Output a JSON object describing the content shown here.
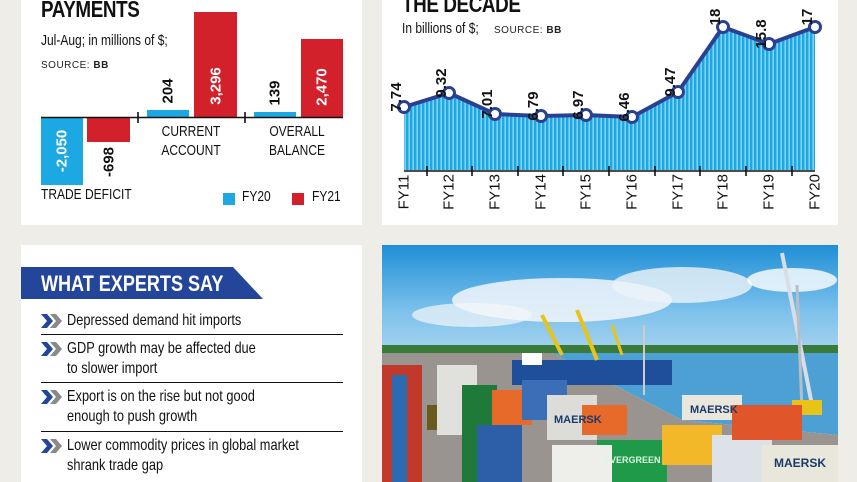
{
  "left_chart": {
    "title": "PAYMENTS",
    "subtitle": "Jul-Aug; in millions of $;",
    "source_label": "SOURCE:",
    "source_value": "BB",
    "groups": [
      "TRADE DEFICIT",
      "CURRENT ACCOUNT",
      "OVERALL BALANCE"
    ],
    "group_lines": [
      [
        "TRADE DEFICIT"
      ],
      [
        "CURRENT",
        "ACCOUNT"
      ],
      [
        "OVERALL",
        "BALANCE"
      ]
    ],
    "value_labels": {
      "fy20": [
        "-2,050",
        "204",
        "139"
      ],
      "fy21": [
        "-698",
        "3,296",
        "2,470"
      ]
    },
    "legend": [
      {
        "label": "FY20",
        "color": "#1ca8e2"
      },
      {
        "label": "FY21",
        "color": "#d3212c"
      }
    ]
  },
  "right_chart": {
    "title": "THE DECADE",
    "subtitle": "In billions of $;",
    "source_label": "SOURCE:",
    "source_value": "BB",
    "x_labels": [
      "FY11",
      "FY12",
      "FY13",
      "FY14",
      "FY15",
      "FY16",
      "FY17",
      "FY18",
      "FY19",
      "FY20"
    ],
    "value_labels": [
      "7.74",
      "9.32",
      "7.01",
      "6.79",
      "6.97",
      "6.46",
      "9.47",
      "18",
      "15.8",
      "17"
    ],
    "line_color": "#2a4192",
    "fill_color": "#1ca8e2"
  },
  "experts": {
    "heading": "WHAT EXPERTS SAY",
    "items": [
      {
        "line1": "Depressed demand hit imports",
        "line2": ""
      },
      {
        "line1": "GDP growth may be affected due",
        "line2": "to slower import"
      },
      {
        "line1": "Export is on the rise but not good",
        "line2": "enough to push growth"
      },
      {
        "line1": "Lower commodity prices in global market",
        "line2": "shrank trade gap"
      }
    ],
    "bullet_icon": "double-chevron-icon"
  },
  "photo": {
    "description": "Container port with cranes, ship and stacked containers",
    "container_texts": [
      "MAERSK",
      "EVERGREEN"
    ]
  },
  "chart_data": [
    {
      "type": "bar",
      "title": "PAYMENTS",
      "subtitle": "Jul-Aug; in millions of $; SOURCE: BB",
      "categories": [
        "TRADE DEFICIT",
        "CURRENT ACCOUNT",
        "OVERALL BALANCE"
      ],
      "series": [
        {
          "name": "FY20",
          "values": [
            -2050,
            204,
            139
          ],
          "color": "#1ca8e2"
        },
        {
          "name": "FY21",
          "values": [
            -698,
            3296,
            2470
          ],
          "color": "#d3212c"
        }
      ],
      "xlabel": "",
      "ylabel": "millions of $",
      "legend_position": "bottom-right",
      "grid": false
    },
    {
      "type": "area",
      "title": "THE DECADE",
      "subtitle": "In billions of $; SOURCE: BB",
      "x": [
        "FY11",
        "FY12",
        "FY13",
        "FY14",
        "FY15",
        "FY16",
        "FY17",
        "FY18",
        "FY19",
        "FY20"
      ],
      "values": [
        7.74,
        9.32,
        7.01,
        6.79,
        6.97,
        6.46,
        9.47,
        18,
        15.8,
        17
      ],
      "xlabel": "",
      "ylabel": "billions of $",
      "grid": false
    }
  ]
}
